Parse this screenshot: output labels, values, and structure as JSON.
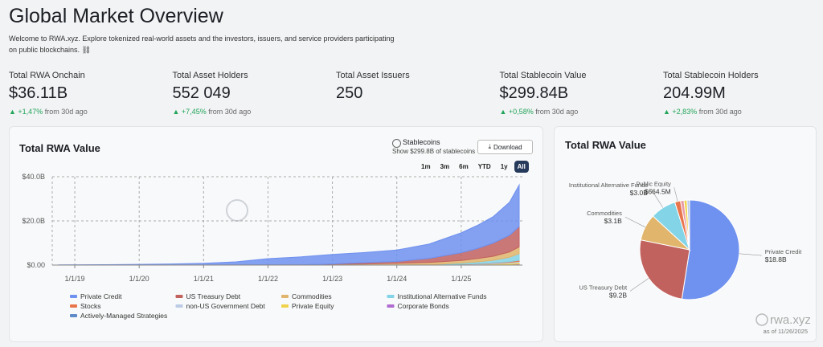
{
  "header": {
    "title": "Global Market Overview",
    "description": "Welcome to RWA.xyz. Explore tokenized real-world assets and the investors, issuers, and service providers participating on public blockchains."
  },
  "stats": [
    {
      "label": "Total RWA Onchain",
      "value": "$36.11B",
      "change": "+1,47%",
      "change_suffix": "from 30d ago"
    },
    {
      "label": "Total Asset Holders",
      "value": "552 049",
      "change": "+7,45%",
      "change_suffix": "from 30d ago"
    },
    {
      "label": "Total Asset Issuers",
      "value": "250"
    },
    {
      "label": "Total Stablecoin Value",
      "value": "$299.84B",
      "change": "+0,58%",
      "change_suffix": "from 30d ago"
    },
    {
      "label": "Total Stablecoin Holders",
      "value": "204.99M",
      "change": "+2,83%",
      "change_suffix": "from 30d ago"
    }
  ],
  "controls": {
    "stablecoins_label": "Stablecoins",
    "stablecoins_note": "Show $299.8B of stablecoins",
    "download": "Download",
    "ranges": [
      "1m",
      "3m",
      "6m",
      "YTD",
      "1y",
      "All"
    ],
    "active_range": "All"
  },
  "watermark": "rwa.xyz",
  "chart_data": [
    {
      "type": "area",
      "stacked": true,
      "title": "Total RWA Value",
      "x": [
        2018.75,
        2019.5,
        2020,
        2020.5,
        2021,
        2021.5,
        2022,
        2022.5,
        2023,
        2023.5,
        2024,
        2024.5,
        2025,
        2025.25,
        2025.5,
        2025.75,
        2025.9
      ],
      "xlim": [
        2018.65,
        2025.95
      ],
      "xticks": [
        {
          "value": 2019,
          "label": "1/1/19"
        },
        {
          "value": 2020,
          "label": "1/1/20"
        },
        {
          "value": 2021,
          "label": "1/1/21"
        },
        {
          "value": 2022,
          "label": "1/1/22"
        },
        {
          "value": 2023,
          "label": "1/1/23"
        },
        {
          "value": 2024,
          "label": "1/1/24"
        },
        {
          "value": 2025,
          "label": "1/1/25"
        }
      ],
      "ylim": [
        0,
        40
      ],
      "yticks": [
        {
          "value": 0,
          "label": "$0.00"
        },
        {
          "value": 20,
          "label": "$20.0B"
        },
        {
          "value": 40,
          "label": "$40.0B"
        }
      ],
      "grid": true,
      "series": [
        {
          "name": "Private Credit",
          "color": "#6f91ef",
          "values": [
            0.1,
            0.2,
            0.3,
            0.5,
            0.8,
            1.4,
            2.8,
            3.6,
            4.3,
            4.6,
            5.2,
            6.5,
            9,
            10.5,
            12,
            15,
            18.8
          ]
        },
        {
          "name": "US Treasury Debt",
          "color": "#c2625f",
          "values": [
            0,
            0,
            0,
            0,
            0,
            0,
            0,
            0,
            0.1,
            0.6,
            0.8,
            1.8,
            3.5,
            4.5,
            6,
            7.5,
            9.2
          ]
        },
        {
          "name": "Commodities",
          "color": "#e1b56c",
          "values": [
            0,
            0,
            0,
            0,
            0,
            0.05,
            0.1,
            0.1,
            0.4,
            0.5,
            0.8,
            1,
            1.2,
            1.5,
            1.8,
            2.4,
            3.1
          ]
        },
        {
          "name": "Institutional Alternative Funds",
          "color": "#82d4e6",
          "values": [
            0,
            0,
            0,
            0,
            0,
            0,
            0,
            0,
            0,
            0,
            0,
            0.1,
            0.5,
            0.8,
            1.2,
            2,
            3.0
          ]
        },
        {
          "name": "Stocks",
          "color": "#e8764c",
          "values": [
            0,
            0,
            0,
            0,
            0,
            0,
            0,
            0,
            0,
            0,
            0,
            0,
            0.05,
            0.1,
            0.2,
            0.3,
            0.5
          ]
        },
        {
          "name": "non-US Government Debt",
          "color": "#bccbe6",
          "values": [
            0,
            0,
            0,
            0,
            0,
            0,
            0,
            0,
            0,
            0,
            0,
            0.1,
            0.2,
            0.2,
            0.3,
            0.4,
            0.5
          ]
        },
        {
          "name": "Private Equity",
          "color": "#f1d24c",
          "values": [
            0,
            0,
            0,
            0,
            0,
            0,
            0,
            0,
            0,
            0,
            0,
            0,
            0.1,
            0.2,
            0.3,
            0.5,
            0.66
          ]
        },
        {
          "name": "Corporate Bonds",
          "color": "#b06cd0",
          "values": [
            0,
            0,
            0,
            0,
            0,
            0,
            0,
            0,
            0,
            0,
            0,
            0,
            0.05,
            0.1,
            0.1,
            0.15,
            0.2
          ]
        },
        {
          "name": "Actively-Managed Strategies",
          "color": "#5f8cc8",
          "values": [
            0,
            0,
            0,
            0,
            0,
            0,
            0,
            0,
            0,
            0,
            0,
            0,
            0,
            0.05,
            0.1,
            0.2,
            0.3
          ]
        }
      ]
    },
    {
      "type": "pie",
      "title": "Total RWA Value",
      "date": "as of 11/26/2025",
      "categories": [
        "Private Credit",
        "US Treasury Debt",
        "Commodities",
        "Institutional Alternative Funds",
        "Public Equity",
        null,
        null,
        null
      ],
      "values": [
        18.8,
        9.2,
        3.1,
        3.0,
        0.6645,
        0.4,
        0.35,
        0.3
      ],
      "value_labels": [
        "$18.8B",
        "$9.2B",
        "$3.1B",
        "$3.0B",
        "$664.5M",
        null,
        null,
        null
      ],
      "colors": [
        "#6f91ef",
        "#c2625f",
        "#e1b56c",
        "#82d4e6",
        "#e8764c",
        "#e99aa5",
        "#f1d24c",
        "#bccbe6"
      ]
    }
  ]
}
